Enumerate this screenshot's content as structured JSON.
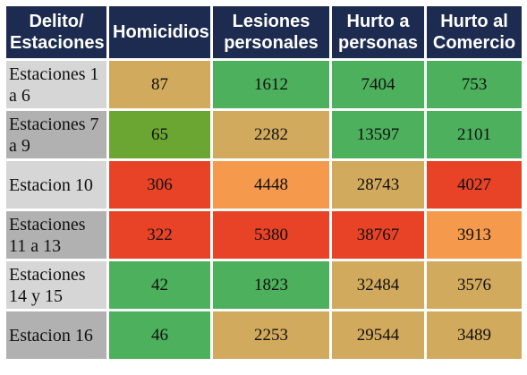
{
  "header": {
    "col0": "Delito/ Estaciones",
    "col1": "Homicidios",
    "col2": "Lesiones personales",
    "col3": "Hurto a personas",
    "col4": "Hurto al Comercio"
  },
  "colors": {
    "header_bg": "#1c2b4f",
    "green": "#4cb05c",
    "dark_green": "#6aa631",
    "tan": "#d2aa5d",
    "orange": "#f59a4c",
    "red": "#e84327"
  },
  "rows": [
    {
      "label": "Estaciones 1 a 6",
      "homicidios": "87",
      "lesiones": "1612",
      "hurto_personas": "7404",
      "hurto_comercio": "753",
      "colors": [
        "tan",
        "green",
        "green",
        "green"
      ]
    },
    {
      "label": "Estaciones 7 a 9",
      "homicidios": "65",
      "lesiones": "2282",
      "hurto_personas": "13597",
      "hurto_comercio": "2101",
      "colors": [
        "dark_green",
        "tan",
        "green",
        "green"
      ]
    },
    {
      "label": "Estacion 10",
      "homicidios": "306",
      "lesiones": "4448",
      "hurto_personas": "28743",
      "hurto_comercio": "4027",
      "colors": [
        "red",
        "orange",
        "tan",
        "red"
      ]
    },
    {
      "label": "Estaciones 11 a  13",
      "homicidios": "322",
      "lesiones": "5380",
      "hurto_personas": "38767",
      "hurto_comercio": "3913",
      "colors": [
        "red",
        "red",
        "red",
        "orange"
      ]
    },
    {
      "label": "Estaciones 14 y 15",
      "homicidios": "42",
      "lesiones": "1823",
      "hurto_personas": "32484",
      "hurto_comercio": "3576",
      "colors": [
        "green",
        "green",
        "tan",
        "tan"
      ]
    },
    {
      "label": "Estacion 16",
      "homicidios": "46",
      "lesiones": "2253",
      "hurto_personas": "29544",
      "hurto_comercio": "3489",
      "colors": [
        "green",
        "tan",
        "tan",
        "tan"
      ]
    }
  ]
}
